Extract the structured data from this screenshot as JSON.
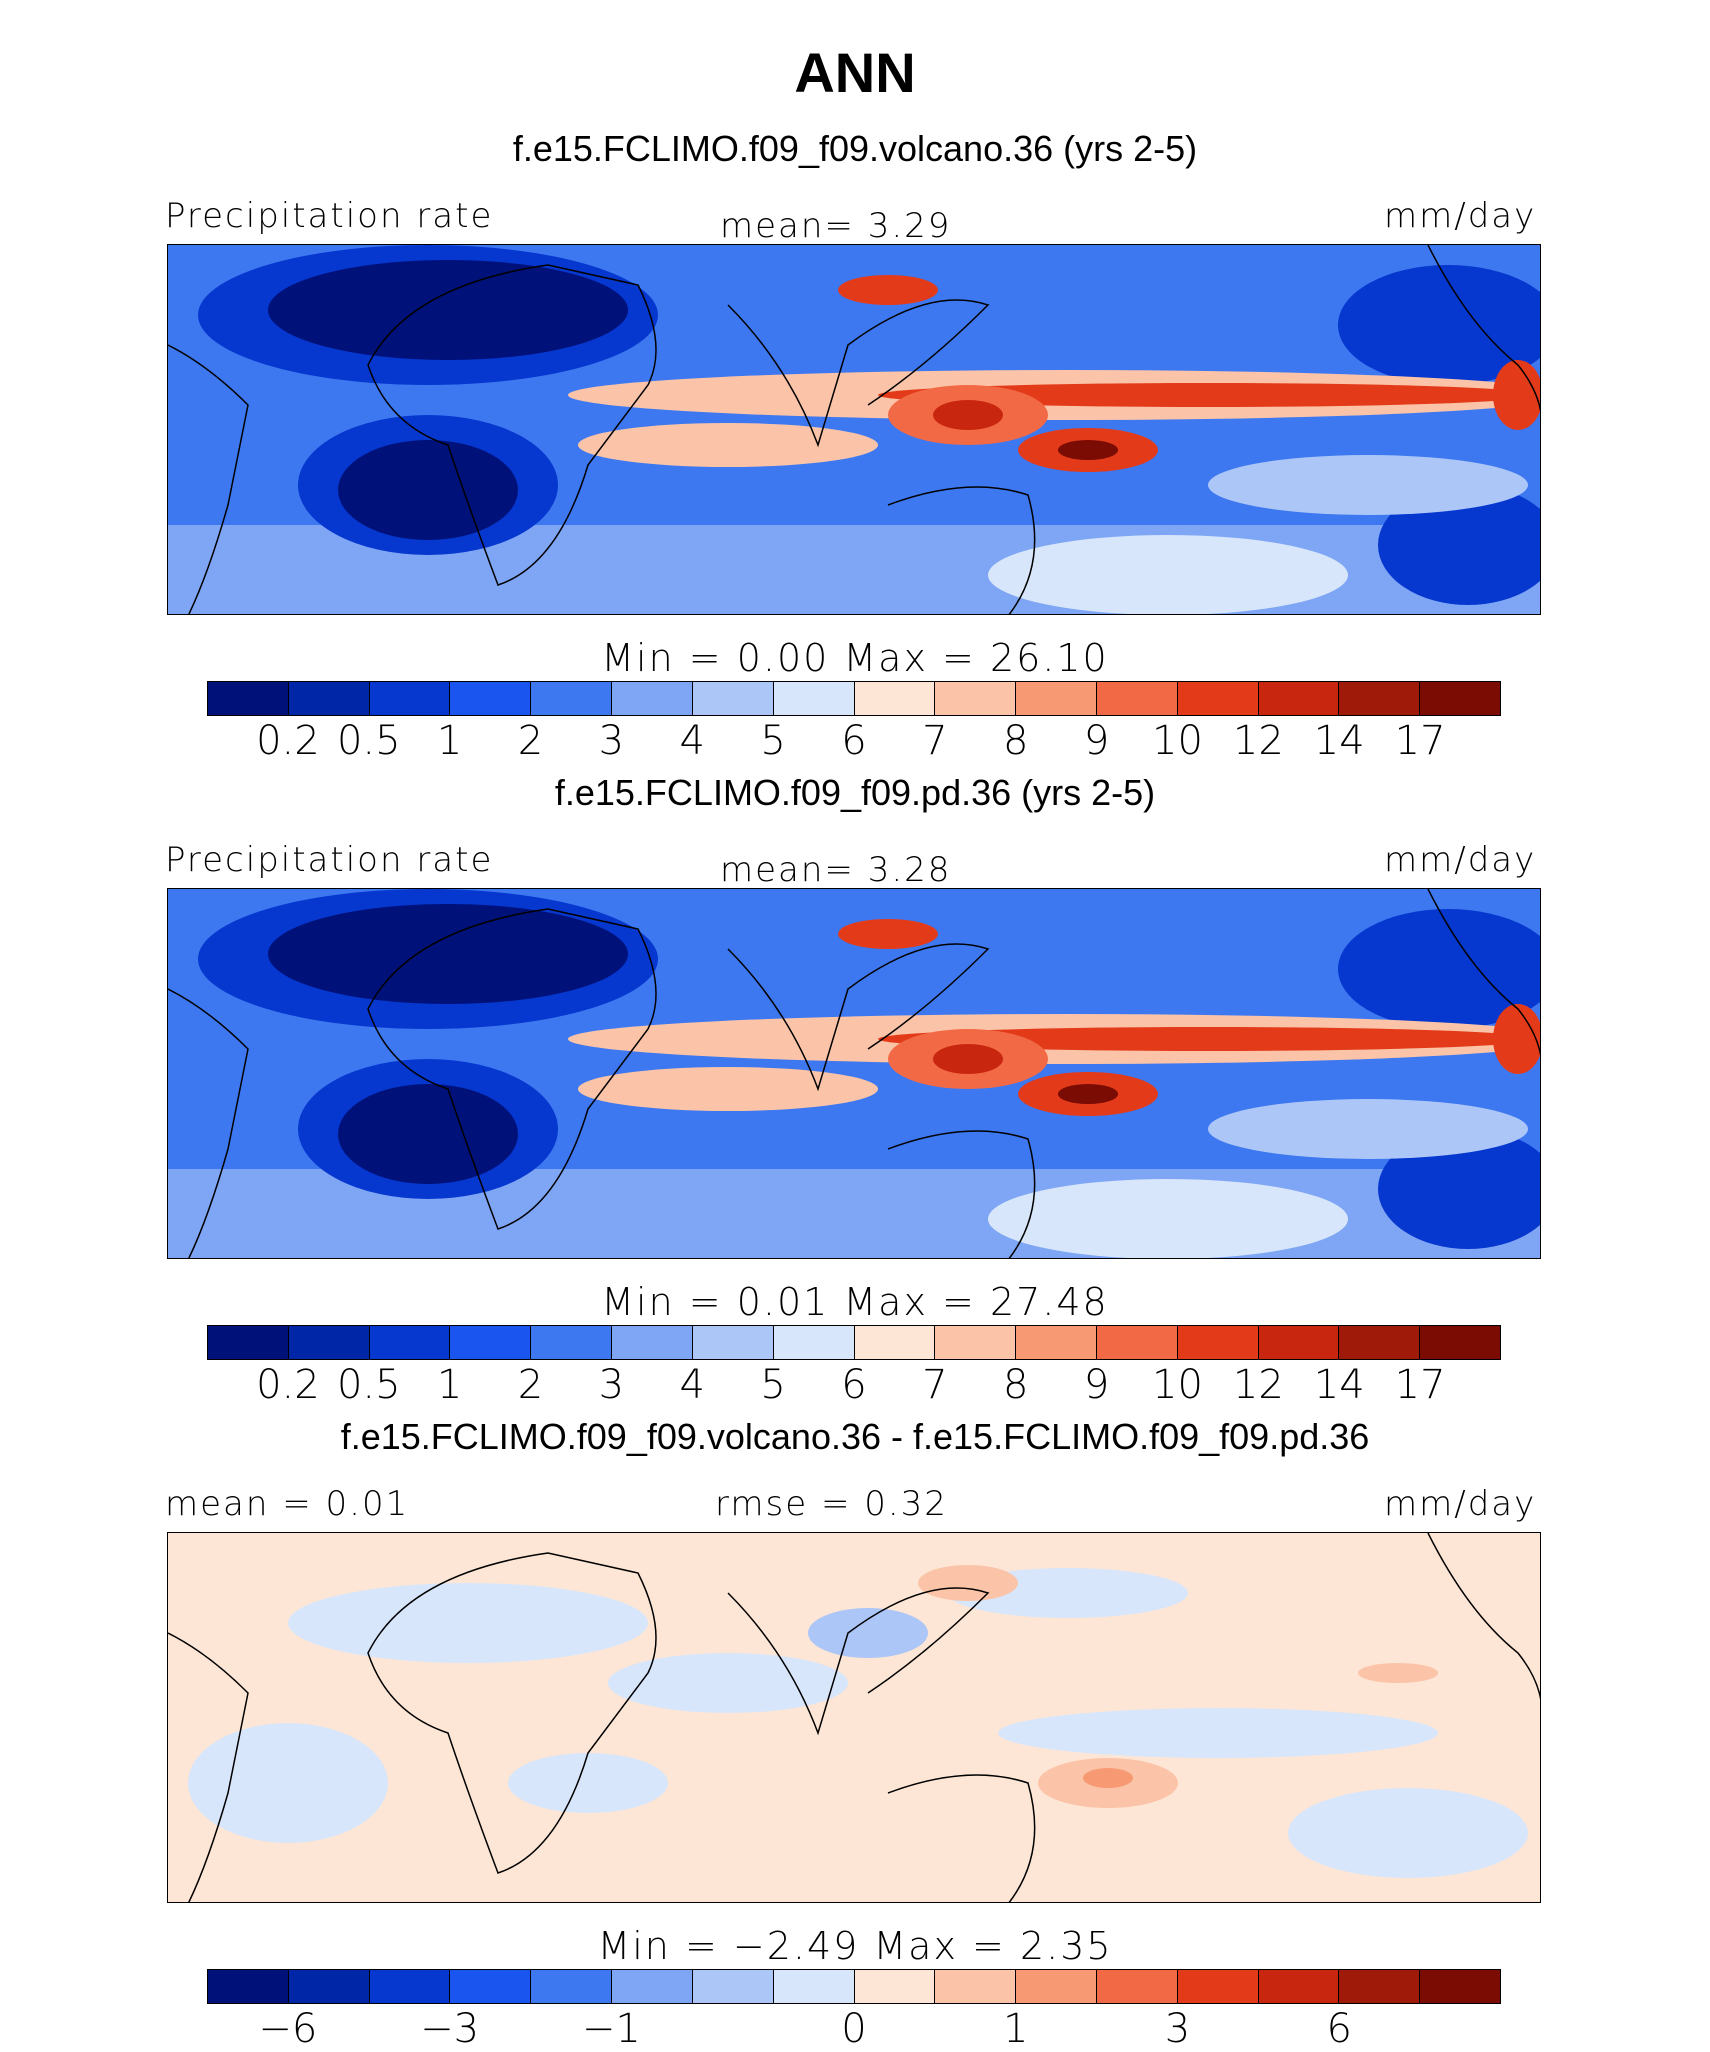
{
  "title": "ANN",
  "units": "mm/day",
  "panels": [
    {
      "case": "f.e15.FCLIMO.f09_f09.volcano.36 (yrs 2-5)",
      "left_label": "Precipitation rate",
      "center_label": "mean=    3.29",
      "right_label": "mm/day",
      "minmax": "Min  =     0.00  Max  =    26.10",
      "ticks": [
        "0.2",
        "0.5",
        "1",
        "2",
        "3",
        "4",
        "5",
        "6",
        "7",
        "8",
        "9",
        "10",
        "12",
        "14",
        "17"
      ]
    },
    {
      "case": "f.e15.FCLIMO.f09_f09.pd.36 (yrs 2-5)",
      "left_label": "Precipitation rate",
      "center_label": "mean=    3.28",
      "right_label": "mm/day",
      "minmax": "Min  =     0.01  Max  =    27.48",
      "ticks": [
        "0.2",
        "0.5",
        "1",
        "2",
        "3",
        "4",
        "5",
        "6",
        "7",
        "8",
        "9",
        "10",
        "12",
        "14",
        "17"
      ]
    },
    {
      "case": "f.e15.FCLIMO.f09_f09.volcano.36 - f.e15.FCLIMO.f09_f09.pd.36",
      "left_label": "mean  =    0.01",
      "center_label": "rmse  =    0.32",
      "right_label": "mm/day",
      "minmax": "Min  =   −2.49  Max  =     2.35",
      "ticks": [
        "−6",
        "−3",
        "−1",
        "0",
        "1",
        "3",
        "6"
      ]
    }
  ],
  "colorbar_colors": [
    "#00127a",
    "#0026a8",
    "#0637cf",
    "#1a55f0",
    "#3d78f0",
    "#7ea6f5",
    "#acc6f8",
    "#d8e6fb",
    "#fde6d6",
    "#fbc4a8",
    "#f79a74",
    "#f26a45",
    "#e33b1a",
    "#c8260f",
    "#a01a0a",
    "#7a0c04"
  ],
  "colors": {
    "deep_blue": "#0b1fa0",
    "blue": "#2f5fe6",
    "light_blue": "#9dbaf6",
    "pale": "#dce8fb",
    "peach": "#fbd2bc",
    "red": "#e2401b",
    "dark_red": "#9a1606"
  }
}
